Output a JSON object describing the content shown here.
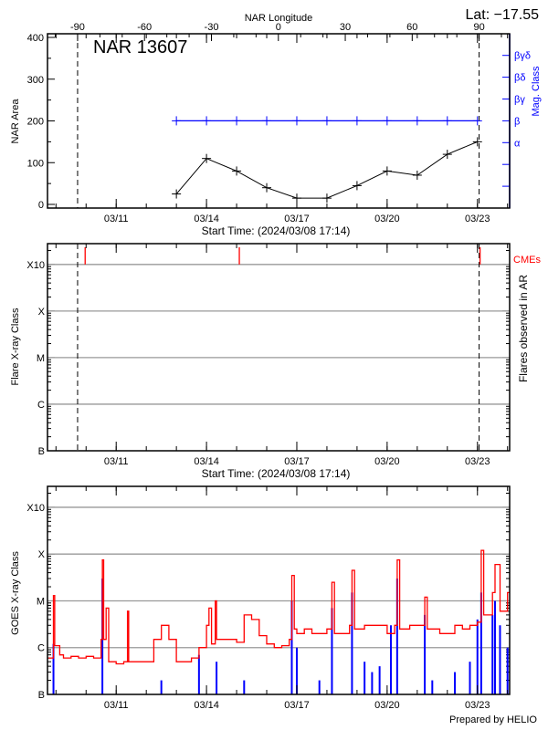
{
  "header": {
    "lat_label": "Lat: −17.55"
  },
  "footer": {
    "credit": "Prepared by HELIO"
  },
  "colors": {
    "axis": "#000000",
    "grid": "#999999",
    "mag_class": "#0000ff",
    "goes_long": "#ff0000",
    "goes_short": "#0000ff",
    "cme": "#ff0000"
  },
  "chart_data": [
    {
      "type": "line",
      "title": "NAR 13607",
      "xlabel": "Start Time: (2024/03/08 17:14)",
      "ylabel": "NAR Area",
      "y2label": "Mag. Class",
      "top_xlabel": "NAR Longitude",
      "xlim": [
        "03/08 17:14",
        "03/24 01:40"
      ],
      "x_ticks": [
        "03/11",
        "03/14",
        "03/17",
        "03/20",
        "03/23"
      ],
      "ylim": [
        0,
        400
      ],
      "y_ticks": [
        0,
        100,
        200,
        300,
        400
      ],
      "top_ticks": [
        -90,
        -60,
        -30,
        0,
        30,
        60,
        90
      ],
      "limb_crossings": [
        "03/09 17:14",
        "03/23 01:20"
      ],
      "y2_levels": [
        "",
        "",
        "α",
        "β",
        "βγ",
        "βδ",
        "βγδ"
      ],
      "grid": false,
      "series": [
        {
          "x": [
            "03/13 00:00",
            "03/14 00:00",
            "03/15 00:00",
            "03/16 00:00",
            "03/17 00:00",
            "03/18 00:00",
            "03/19 00:00",
            "03/20 00:00",
            "03/21 00:00",
            "03/22 00:00",
            "03/23 00:00"
          ],
          "values": [
            25,
            110,
            80,
            40,
            15,
            15,
            45,
            80,
            70,
            120,
            150
          ],
          "axis": "left",
          "color": "#000000"
        },
        {
          "x": [
            "03/13 00:00",
            "03/14 00:00",
            "03/15 00:00",
            "03/16 00:00",
            "03/17 00:00",
            "03/18 00:00",
            "03/19 00:00",
            "03/20 00:00",
            "03/21 00:00",
            "03/22 00:00",
            "03/23 00:00"
          ],
          "values": [
            "β",
            "β",
            "β",
            "β",
            "β",
            "β",
            "β",
            "β",
            "β",
            "β",
            "β"
          ],
          "axis": "right",
          "color": "#0000ff"
        }
      ]
    },
    {
      "type": "scatter",
      "xlabel": "Start Time: (2024/03/08 17:14)",
      "ylabel": "Flare X-ray Class",
      "y2label": "Flares observed in AR",
      "cme_label": "CMEs",
      "xlim": [
        "03/08 17:14",
        "03/24 01:40"
      ],
      "x_ticks": [
        "03/11",
        "03/14",
        "03/17",
        "03/20",
        "03/23"
      ],
      "ylim": [
        "B1",
        "X28"
      ],
      "y_ticks": [
        "B",
        "C",
        "M",
        "X",
        "X10"
      ],
      "grid": true,
      "limb_crossings": [
        "03/09 17:14",
        "03/23 01:20"
      ],
      "flares": [],
      "cmes": [
        "03/09 23:15",
        "03/15 02:10",
        "03/23 02:05"
      ]
    },
    {
      "type": "line",
      "ylabel": "GOES X-ray Class",
      "xlim": [
        "03/08 17:14",
        "03/24 01:40"
      ],
      "x_ticks": [
        "03/11",
        "03/14",
        "03/17",
        "03/20",
        "03/23"
      ],
      "ylim": [
        "B1",
        "X28"
      ],
      "y_ticks": [
        "B",
        "C",
        "M",
        "X",
        "X10"
      ],
      "grid": true,
      "series": [
        {
          "color": "#ff0000",
          "points": [
            [
              "03/08 18:00",
              "B6"
            ],
            [
              "03/08 22:00",
              "M1.3"
            ],
            [
              "03/08 23:00",
              "C1.1"
            ],
            [
              "03/09 03:00",
              "B7"
            ],
            [
              "03/09 06:00",
              "B6"
            ],
            [
              "03/09 12:00",
              "B6.5"
            ],
            [
              "03/09 18:00",
              "B6"
            ],
            [
              "03/10 00:00",
              "B6.5"
            ],
            [
              "03/10 06:00",
              "B6"
            ],
            [
              "03/10 12:00",
              "C1.5"
            ],
            [
              "03/10 13:00",
              "M7.5"
            ],
            [
              "03/10 14:00",
              "C1.5"
            ],
            [
              "03/10 16:00",
              "C7"
            ],
            [
              "03/10 18:00",
              "B5"
            ],
            [
              "03/11 00:00",
              "B4.5"
            ],
            [
              "03/11 06:00",
              "B5"
            ],
            [
              "03/11 09:00",
              "C6"
            ],
            [
              "03/11 10:00",
              "B5"
            ],
            [
              "03/11 18:00",
              "B5"
            ],
            [
              "03/12 00:00",
              "B5"
            ],
            [
              "03/12 06:00",
              "C1.5"
            ],
            [
              "03/12 12:00",
              "C3"
            ],
            [
              "03/12 18:00",
              "C1.5"
            ],
            [
              "03/13 00:00",
              "B5"
            ],
            [
              "03/13 06:00",
              "B5"
            ],
            [
              "03/13 12:00",
              "B6"
            ],
            [
              "03/13 18:00",
              "C1"
            ],
            [
              "03/14 00:00",
              "C3"
            ],
            [
              "03/14 02:00",
              "C7"
            ],
            [
              "03/14 04:00",
              "C1.2"
            ],
            [
              "03/14 07:00",
              "M1"
            ],
            [
              "03/14 08:00",
              "C1.5"
            ],
            [
              "03/14 18:00",
              "C1.5"
            ],
            [
              "03/15 00:00",
              "C1.3"
            ],
            [
              "03/15 06:00",
              "C5"
            ],
            [
              "03/15 12:00",
              "C4"
            ],
            [
              "03/15 18:00",
              "C1.8"
            ],
            [
              "03/16 00:00",
              "C1.2"
            ],
            [
              "03/16 06:00",
              "C1"
            ],
            [
              "03/16 12:00",
              "C1.1"
            ],
            [
              "03/16 18:00",
              "C1.5"
            ],
            [
              "03/16 20:00",
              "M3.5"
            ],
            [
              "03/16 22:00",
              "C2.5"
            ],
            [
              "03/17 00:00",
              "C2"
            ],
            [
              "03/17 06:00",
              "C2.5"
            ],
            [
              "03/17 12:00",
              "C2"
            ],
            [
              "03/17 18:00",
              "C2"
            ],
            [
              "03/18 00:00",
              "C2.5"
            ],
            [
              "03/18 04:00",
              "M2.5"
            ],
            [
              "03/18 06:00",
              "C2"
            ],
            [
              "03/18 12:00",
              "C2"
            ],
            [
              "03/18 18:00",
              "C3"
            ],
            [
              "03/18 20:00",
              "M4.5"
            ],
            [
              "03/18 22:00",
              "C2.5"
            ],
            [
              "03/19 06:00",
              "C3"
            ],
            [
              "03/19 12:00",
              "C3"
            ],
            [
              "03/19 18:00",
              "C3"
            ],
            [
              "03/20 00:00",
              "C2"
            ],
            [
              "03/20 06:00",
              "C3"
            ],
            [
              "03/20 08:00",
              "M7.5"
            ],
            [
              "03/20 10:00",
              "C2.5"
            ],
            [
              "03/20 18:00",
              "C3"
            ],
            [
              "03/21 00:00",
              "C3"
            ],
            [
              "03/21 06:00",
              "M1.2"
            ],
            [
              "03/21 08:00",
              "C2.5"
            ],
            [
              "03/21 18:00",
              "C2"
            ],
            [
              "03/22 00:00",
              "C2"
            ],
            [
              "03/22 06:00",
              "C3"
            ],
            [
              "03/22 12:00",
              "C2.5"
            ],
            [
              "03/22 18:00",
              "C3"
            ],
            [
              "03/23 00:00",
              "C3.5"
            ],
            [
              "03/23 03:00",
              "X1.2"
            ],
            [
              "03/23 05:00",
              "C5"
            ],
            [
              "03/23 12:00",
              "M1.5"
            ],
            [
              "03/23 14:00",
              "M6"
            ],
            [
              "03/23 18:00",
              "C6"
            ],
            [
              "03/24 00:00",
              "M1.5"
            ]
          ]
        },
        {
          "color": "#0000ff",
          "spikes": [
            [
              "03/08 22:00",
              "C1.2"
            ],
            [
              "03/10 13:00",
              "M3"
            ],
            [
              "03/12 12:00",
              "B2"
            ],
            [
              "03/13 18:00",
              "B7"
            ],
            [
              "03/14 08:00",
              "B5"
            ],
            [
              "03/15 06:00",
              "B2"
            ],
            [
              "03/16 20:00",
              "M1"
            ],
            [
              "03/17 00:00",
              "C1"
            ],
            [
              "03/17 18:00",
              "B2"
            ],
            [
              "03/18 04:00",
              "C7"
            ],
            [
              "03/18 20:00",
              "M1.5"
            ],
            [
              "03/19 06:00",
              "B5"
            ],
            [
              "03/19 12:00",
              "B3"
            ],
            [
              "03/19 18:00",
              "B4"
            ],
            [
              "03/20 03:00",
              "C3"
            ],
            [
              "03/20 08:00",
              "M3"
            ],
            [
              "03/21 06:00",
              "C5"
            ],
            [
              "03/21 12:00",
              "B2"
            ],
            [
              "03/22 06:00",
              "B3"
            ],
            [
              "03/22 18:00",
              "B5"
            ],
            [
              "03/23 00:00",
              "C4"
            ],
            [
              "03/23 03:00",
              "M1.5"
            ],
            [
              "03/23 12:00",
              "C5"
            ],
            [
              "03/23 14:00",
              "M1"
            ],
            [
              "03/23 18:00",
              "C3"
            ],
            [
              "03/24 00:00",
              "C1"
            ]
          ]
        }
      ]
    }
  ]
}
